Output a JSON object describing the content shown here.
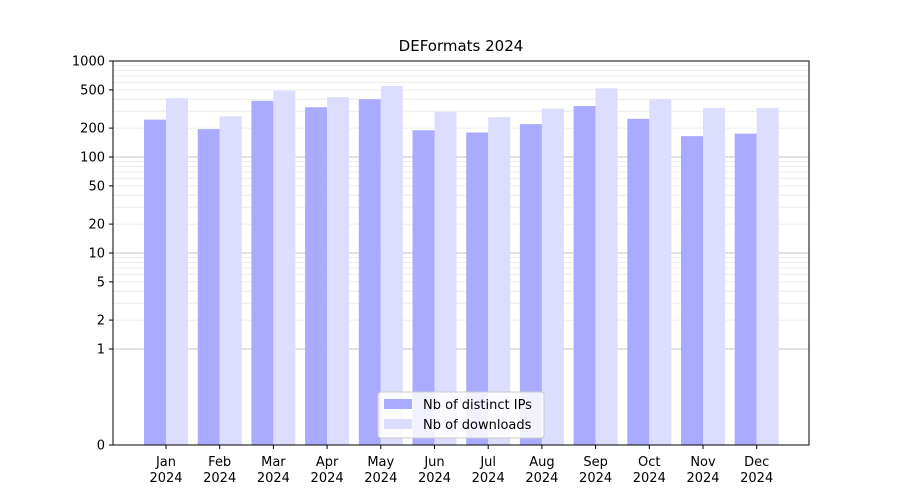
{
  "chart_data": {
    "type": "bar",
    "title": "DEFormats 2024",
    "xlabel": "",
    "ylabel": "",
    "yscale": "symlog",
    "ylim": [
      0,
      1000
    ],
    "y_ticks": [
      0,
      1,
      2,
      5,
      10,
      20,
      50,
      100,
      200,
      500,
      1000
    ],
    "categories": [
      [
        "Jan",
        "2024"
      ],
      [
        "Feb",
        "2024"
      ],
      [
        "Mar",
        "2024"
      ],
      [
        "Apr",
        "2024"
      ],
      [
        "May",
        "2024"
      ],
      [
        "Jun",
        "2024"
      ],
      [
        "Jul",
        "2024"
      ],
      [
        "Aug",
        "2024"
      ],
      [
        "Sep",
        "2024"
      ],
      [
        "Oct",
        "2024"
      ],
      [
        "Nov",
        "2024"
      ],
      [
        "Dec",
        "2024"
      ]
    ],
    "series": [
      {
        "name": "Nb of distinct IPs",
        "color": "#aaaaff",
        "values": [
          245,
          195,
          385,
          330,
          400,
          190,
          180,
          220,
          340,
          250,
          165,
          175
        ]
      },
      {
        "name": "Nb of downloads",
        "color": "#ddddff",
        "values": [
          410,
          265,
          490,
          420,
          550,
          295,
          260,
          320,
          520,
          400,
          325,
          325
        ]
      }
    ],
    "grid": true,
    "legend_position": "bottom-center"
  }
}
